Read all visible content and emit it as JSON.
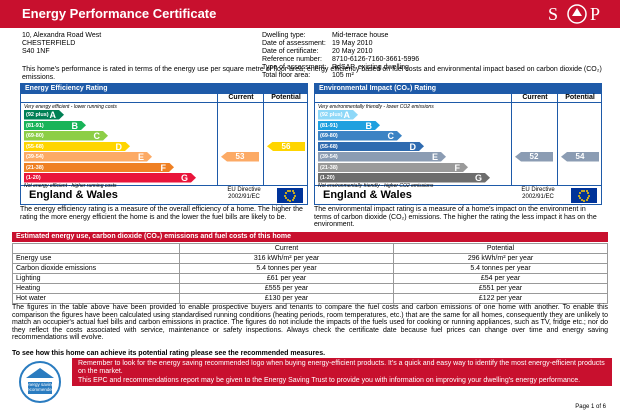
{
  "header": {
    "title": "Energy Performance Certificate",
    "logo_left": "S",
    "logo_right": "P"
  },
  "address": [
    "10, Alexandra Road West",
    "CHESTERFIELD",
    "S40 1NF"
  ],
  "details": [
    [
      "Dwelling type:",
      "Mid-terrace house"
    ],
    [
      "Date of assessment:",
      "19 May 2010"
    ],
    [
      "Date of certificate:",
      "20 May 2010"
    ],
    [
      "Reference number:",
      "8710-6126-7160-3661-5996"
    ],
    [
      "Type of assessment:",
      "RdSAP, existing dwelling"
    ],
    [
      "Total floor area:",
      "105 m²"
    ]
  ],
  "intro": "This home's performance is rated in terms of the energy use per square metre of floor area, energy efficiency based on fuel costs and environmental impact based on carbon dioxide (CO₂) emissions.",
  "efficiency_chart": {
    "title": "Energy Efficiency Rating",
    "columns": [
      "Current",
      "Potential"
    ],
    "top_note": "Very energy efficient - lower running costs",
    "bands": [
      {
        "range": "(92 plus)",
        "letter": "A",
        "color": "#008054"
      },
      {
        "range": "(81-91)",
        "letter": "B",
        "color": "#19b459"
      },
      {
        "range": "(69-80)",
        "letter": "C",
        "color": "#8dce46"
      },
      {
        "range": "(55-68)",
        "letter": "D",
        "color": "#ffd500"
      },
      {
        "range": "(39-54)",
        "letter": "E",
        "color": "#fcaa65"
      },
      {
        "range": "(21-38)",
        "letter": "F",
        "color": "#ef8023"
      },
      {
        "range": "(1-20)",
        "letter": "G",
        "color": "#e9153b"
      }
    ],
    "bottom_note": "Not energy efficient - higher running costs",
    "current": 53,
    "potential": 56,
    "region": "England & Wales",
    "directive": [
      "EU Directive",
      "2002/91/EC"
    ],
    "description": "The energy efficiency rating is a measure of the overall efficiency of a home. The higher the rating the more energy efficient the home is and the lower the fuel bills are likely to be."
  },
  "environmental_chart": {
    "title": "Environmental Impact (CO₂) Rating",
    "columns": [
      "Current",
      "Potential"
    ],
    "top_note": "Very environmentally friendly - lower CO2 emissions",
    "bands": [
      {
        "range": "(92 plus)",
        "letter": "A",
        "color": "#8ed8f8"
      },
      {
        "range": "(81-91)",
        "letter": "B",
        "color": "#1fa0df"
      },
      {
        "range": "(69-80)",
        "letter": "C",
        "color": "#3b83c4"
      },
      {
        "range": "(55-68)",
        "letter": "D",
        "color": "#2f6bb0"
      },
      {
        "range": "(39-54)",
        "letter": "E",
        "color": "#8b9cb3"
      },
      {
        "range": "(21-38)",
        "letter": "F",
        "color": "#9a9a9a"
      },
      {
        "range": "(1-20)",
        "letter": "G",
        "color": "#6d6d6d"
      }
    ],
    "bottom_note": "Not environmentally friendly - higher CO2 emissions",
    "current": 52,
    "potential": 54,
    "region": "England & Wales",
    "directive": [
      "EU Directive",
      "2002/91/EC"
    ],
    "description": "The environmental impact rating is a measure of a home's impact on the environment in terms of carbon dioxide (CO₂) emissions. The higher the rating the less impact it has on the environment."
  },
  "table": {
    "title": "Estimated energy use, carbon dioxide (CO₂) emissions and fuel costs of this home",
    "columns": [
      "Current",
      "Potential"
    ],
    "rows": [
      [
        "Energy use",
        "316 kWh/m² per year",
        "296 kWh/m² per year"
      ],
      [
        "Carbon dioxide emissions",
        "5.4 tonnes per year",
        "5.4 tonnes per year"
      ],
      [
        "Lighting",
        "£61 per year",
        "£54 per year"
      ],
      [
        "Heating",
        "£555 per year",
        "£551 per year"
      ],
      [
        "Hot water",
        "£130 per year",
        "£122 per year"
      ]
    ]
  },
  "notes": "The figures in the table above have been provided to enable prospective buyers and tenants to compare the fuel costs and carbon emissions of one home with another. To enable this comparison the figures have been calculated using standardised running conditions (heating periods, room temperatures, etc.) that are the same for all homes, consequently they are unlikely to match an occupier's actual fuel bills and carbon emissions in practice. The figures do not include the impacts of the fuels used for cooking or running appliances, such as TV, fridge etc.; nor do they reflect the costs associated with service, maintenance or safety inspections. Always check the certificate date because fuel prices can change over time and energy saving recommendations will evolve.",
  "recommendation": "To see how this home can achieve its potential rating please see the recommended measures.",
  "footer_box": {
    "logo": [
      "energy saving",
      "recommended"
    ],
    "lines": [
      "Remember to look for the energy saving recommended logo when buying energy-efficient products. It's a quick and easy way to identify the most energy-efficient products on the market.",
      "This EPC and recommendations report may be given to the Energy Saving Trust to provide you with information on improving your dwelling's energy performance."
    ]
  },
  "page": "Page 1 of 6"
}
